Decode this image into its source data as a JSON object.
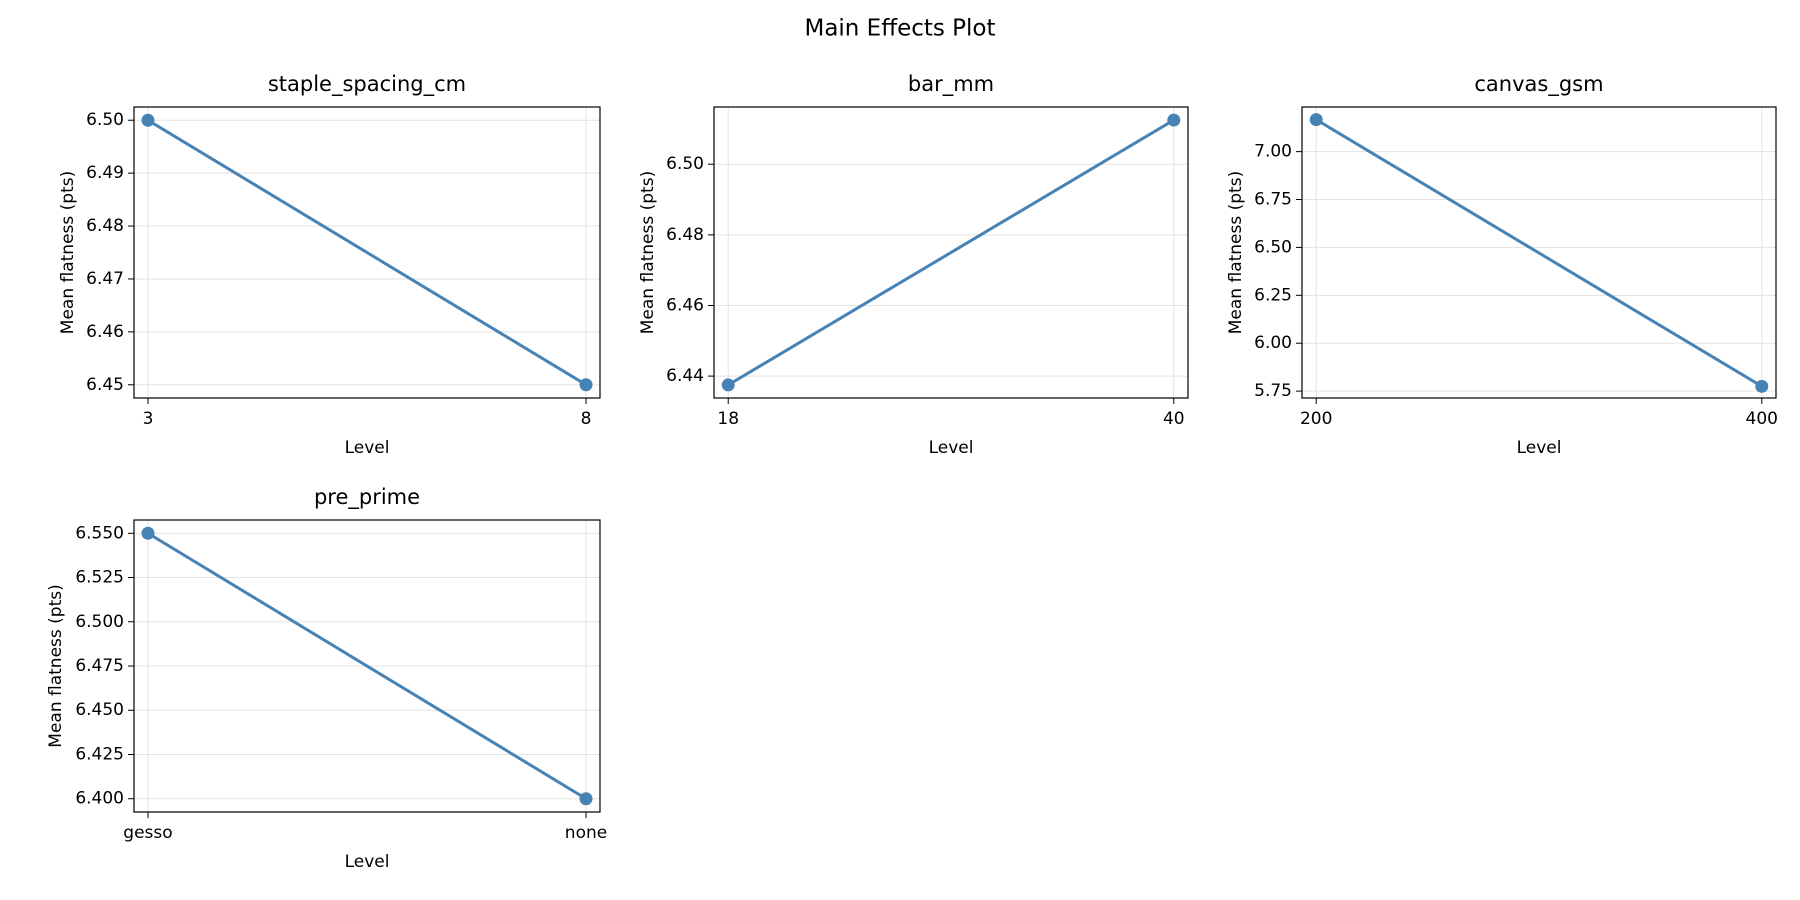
{
  "title": "Main Effects Plot",
  "chart_data": [
    {
      "type": "line",
      "title": "staple_spacing_cm",
      "xlabel": "Level",
      "ylabel": "Mean flatness (pts)",
      "categories": [
        "3",
        "8"
      ],
      "values": [
        6.5,
        6.45
      ],
      "color": "#4682b4",
      "ylim": [
        6.4475,
        6.5025
      ],
      "yticks": [
        6.45,
        6.46,
        6.47,
        6.48,
        6.49,
        {
          "value": 6.5,
          "label": "6.50"
        }
      ],
      "grid": true
    },
    {
      "type": "line",
      "title": "bar_mm",
      "xlabel": "Level",
      "ylabel": "Mean flatness (pts)",
      "categories": [
        "18",
        "40"
      ],
      "values": [
        6.4375,
        6.5125
      ],
      "color": "#4682b4",
      "ylim": [
        6.4338,
        6.5162
      ],
      "yticks": [
        6.44,
        6.46,
        6.48,
        {
          "value": 6.5,
          "label": "6.50"
        }
      ],
      "grid": true
    },
    {
      "type": "line",
      "title": "canvas_gsm",
      "xlabel": "Level",
      "ylabel": "Mean flatness (pts)",
      "categories": [
        "200",
        "400"
      ],
      "values": [
        7.167,
        5.775
      ],
      "color": "#4682b4",
      "ylim": [
        5.714,
        7.233
      ],
      "yticks": [
        5.75,
        {
          "value": 6,
          "label": "6.00"
        },
        6.25,
        {
          "value": 6.5,
          "label": "6.50"
        },
        6.75,
        {
          "value": 7,
          "label": "7.00"
        }
      ],
      "grid": true
    },
    {
      "type": "line",
      "title": "pre_prime",
      "xlabel": "Level",
      "ylabel": "Mean flatness (pts)",
      "categories": [
        "gesso",
        "none"
      ],
      "values": [
        6.55,
        6.4
      ],
      "color": "#4682b4",
      "ylim": [
        6.3925,
        6.5575
      ],
      "yticks": [
        {
          "value": 6.4,
          "label": "6.400"
        },
        6.425,
        {
          "value": 6.45,
          "label": "6.450"
        },
        6.475,
        {
          "value": 6.5,
          "label": "6.500"
        },
        6.525,
        {
          "value": 6.55,
          "label": "6.550"
        }
      ],
      "grid": true
    }
  ]
}
